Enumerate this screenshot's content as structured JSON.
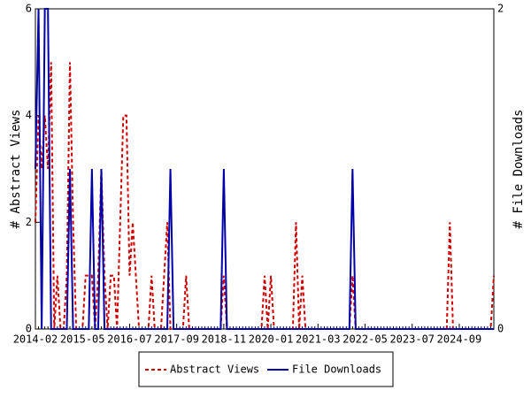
{
  "chart_data": {
    "type": "line",
    "xlabel": null,
    "ylabel": "# Abstract Views",
    "y2label": "# File Downloads",
    "categories": [
      "2014-02",
      null,
      null,
      null,
      null,
      null,
      null,
      null,
      null,
      null,
      null,
      null,
      null,
      null,
      null,
      "2015-05",
      null,
      null,
      null,
      null,
      null,
      null,
      null,
      null,
      null,
      null,
      null,
      null,
      null,
      null,
      "2016-07",
      null,
      null,
      null,
      null,
      null,
      null,
      null,
      null,
      null,
      null,
      null,
      null,
      null,
      null,
      "2017-09",
      null,
      null,
      null,
      null,
      null,
      null,
      null,
      null,
      null,
      null,
      null,
      null,
      null,
      null,
      "2018-11",
      null,
      null,
      null,
      null,
      null,
      null,
      null,
      null,
      null,
      null,
      null,
      null,
      null,
      null,
      "2020-01",
      null,
      null,
      null,
      null,
      null,
      null,
      null,
      null,
      null,
      null,
      null,
      null,
      null,
      null,
      "2021-03",
      null,
      null,
      null,
      null,
      null,
      null,
      null,
      null,
      null,
      null,
      null,
      null,
      null,
      null,
      "2022-05",
      null,
      null,
      null,
      null,
      null,
      null,
      null,
      null,
      null,
      null,
      null,
      null,
      null,
      null,
      "2023-07",
      null,
      null,
      null,
      null,
      null,
      null,
      null,
      null,
      null,
      null,
      null,
      null,
      null,
      null,
      "2024-09",
      null,
      null,
      null,
      null,
      null,
      null,
      null,
      null,
      null,
      null,
      null
    ],
    "series": [
      {
        "name": "Abstract Views",
        "color": "#cc0000",
        "dash": true,
        "axis": "y",
        "values": [
          2,
          4,
          3,
          4,
          3,
          5,
          0,
          1,
          0,
          0,
          1,
          5,
          2,
          0,
          0,
          0,
          1,
          1,
          1,
          0,
          1,
          3,
          1,
          0,
          1,
          1,
          0,
          2,
          4,
          4,
          1,
          2,
          1,
          0,
          0,
          0,
          0,
          1,
          0,
          0,
          0,
          1,
          2,
          0,
          0,
          0,
          0,
          0,
          1,
          0,
          0,
          0,
          0,
          0,
          0,
          0,
          0,
          0,
          0,
          0,
          1,
          0,
          0,
          0,
          0,
          0,
          0,
          0,
          0,
          0,
          0,
          0,
          0,
          1,
          0,
          1,
          0,
          0,
          0,
          0,
          0,
          0,
          0,
          2,
          0,
          1,
          0,
          0,
          0,
          0,
          0,
          0,
          0,
          0,
          0,
          0,
          0,
          0,
          0,
          0,
          0,
          1,
          0,
          0,
          0,
          0,
          0,
          0,
          0,
          0,
          0,
          0,
          0,
          0,
          0,
          0,
          0,
          0,
          0,
          0,
          0,
          0,
          0,
          0,
          0,
          0,
          0,
          0,
          0,
          0,
          0,
          0,
          2,
          0,
          0,
          0,
          0,
          0,
          0,
          0,
          0,
          0,
          0,
          0,
          0,
          0,
          1
        ]
      },
      {
        "name": "File Downloads",
        "color": "#0000aa",
        "dash": false,
        "axis": "y2",
        "values": [
          1,
          2,
          0,
          2,
          2,
          0,
          0,
          0,
          0,
          0,
          0,
          1,
          0,
          0,
          0,
          0,
          0,
          0,
          1,
          0,
          0,
          1,
          0,
          0,
          0,
          0,
          0,
          0,
          0,
          0,
          0,
          0,
          0,
          0,
          0,
          0,
          0,
          0,
          0,
          0,
          0,
          0,
          0,
          1,
          0,
          0,
          0,
          0,
          0,
          0,
          0,
          0,
          0,
          0,
          0,
          0,
          0,
          0,
          0,
          0,
          1,
          0,
          0,
          0,
          0,
          0,
          0,
          0,
          0,
          0,
          0,
          0,
          0,
          0,
          0,
          0,
          0,
          0,
          0,
          0,
          0,
          0,
          0,
          0,
          0,
          0,
          0,
          0,
          0,
          0,
          0,
          0,
          0,
          0,
          0,
          0,
          0,
          0,
          0,
          0,
          0,
          1,
          0,
          0,
          0,
          0,
          0,
          0,
          0,
          0,
          0,
          0,
          0,
          0,
          0,
          0,
          0,
          0,
          0,
          0,
          0,
          0,
          0,
          0,
          0,
          0,
          0,
          0,
          0,
          0,
          0,
          0,
          0,
          0,
          0,
          0,
          0,
          0,
          0,
          0,
          0,
          0,
          0,
          0,
          0,
          0,
          0
        ]
      }
    ],
    "ylim": [
      0,
      6
    ],
    "yticks": [
      0,
      2,
      4,
      6
    ],
    "y2lim": [
      0,
      2
    ],
    "y2ticks": [
      0,
      2
    ],
    "grid": false,
    "legend": "bottom"
  }
}
